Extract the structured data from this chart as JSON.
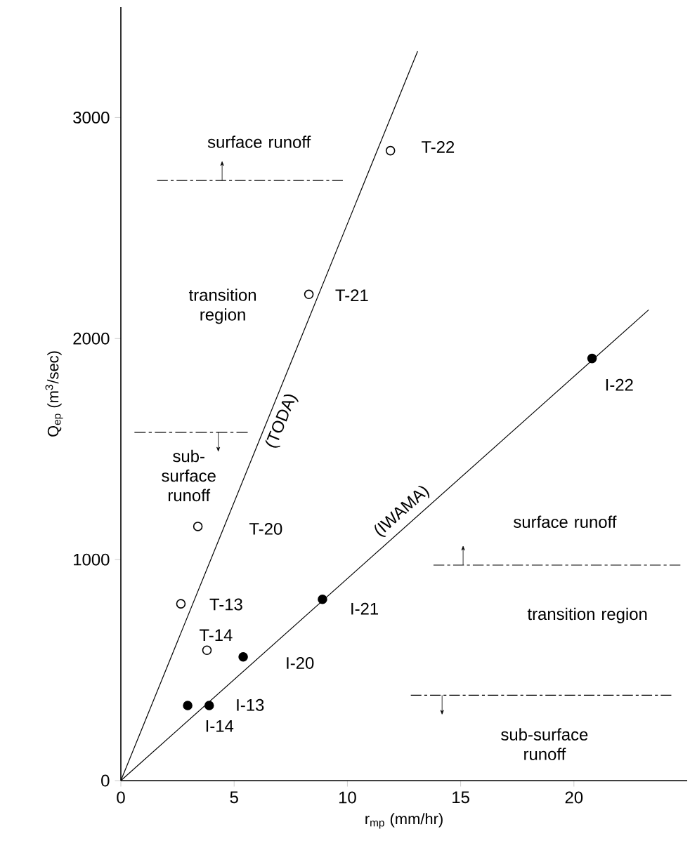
{
  "chart_data": {
    "type": "scatter",
    "xlabel": "r$_{mp}$ (mm/hr)",
    "ylabel": "Q$_{ep}$ (m$^{3}$/sec)",
    "xlim": [
      0,
      25
    ],
    "ylim": [
      0,
      3500
    ],
    "xticks": [
      0,
      5,
      10,
      15,
      20
    ],
    "yticks": [
      0,
      1000,
      2000,
      3000
    ],
    "grid": false,
    "series": [
      {
        "type": "line",
        "name": "(TODA)",
        "color": "#000000",
        "x": [
          0,
          13.1
        ],
        "values": [
          0,
          3300
        ],
        "marker": "none",
        "line_style": "solid"
      },
      {
        "type": "line",
        "name": "(IWAMA)",
        "color": "#000000",
        "x": [
          0,
          23.3
        ],
        "values": [
          0,
          2130
        ],
        "marker": "none",
        "line_style": "solid"
      },
      {
        "color": "#ffffff",
        "marker": "circle",
        "x": [
          11.9,
          8.3,
          3.4,
          2.65,
          3.8
        ],
        "values": [
          2850,
          2200,
          1150,
          800,
          590
        ]
      },
      {
        "color": "#000000",
        "marker": "circle",
        "x": [
          20.8,
          8.9,
          5.4,
          3.9,
          2.95
        ],
        "values": [
          1910,
          820,
          560,
          340,
          340
        ]
      },
      {
        "type": "line",
        "color": "#000000",
        "marker": "none",
        "line_style": "dashed",
        "x": [
          1.6,
          9.8
        ],
        "values": [
          2715,
          2715
        ]
      },
      {
        "type": "line",
        "color": "#000000",
        "marker": "none",
        "line_style": "dashed",
        "x": [
          0.6,
          5.6
        ],
        "values": [
          1576,
          1576
        ]
      },
      {
        "type": "line",
        "color": "#000000",
        "marker": "none",
        "line_style": "dashed",
        "x": [
          13.8,
          24.7
        ],
        "values": [
          975,
          975
        ]
      },
      {
        "type": "line",
        "color": "#000000",
        "marker": "none",
        "line_style": "dashed",
        "x": [
          12.8,
          24.3
        ],
        "values": [
          386,
          386
        ]
      }
    ],
    "annotations": [
      "T-22",
      "T-21",
      "T-20",
      "T-13",
      "T-14",
      "I-22",
      "I-21",
      "I-20",
      "I-13",
      "I-14",
      "surface runoff",
      "transition region",
      "sub-surface runoff",
      "surface runoff",
      "transition region",
      "sub-surface runoff"
    ]
  }
}
